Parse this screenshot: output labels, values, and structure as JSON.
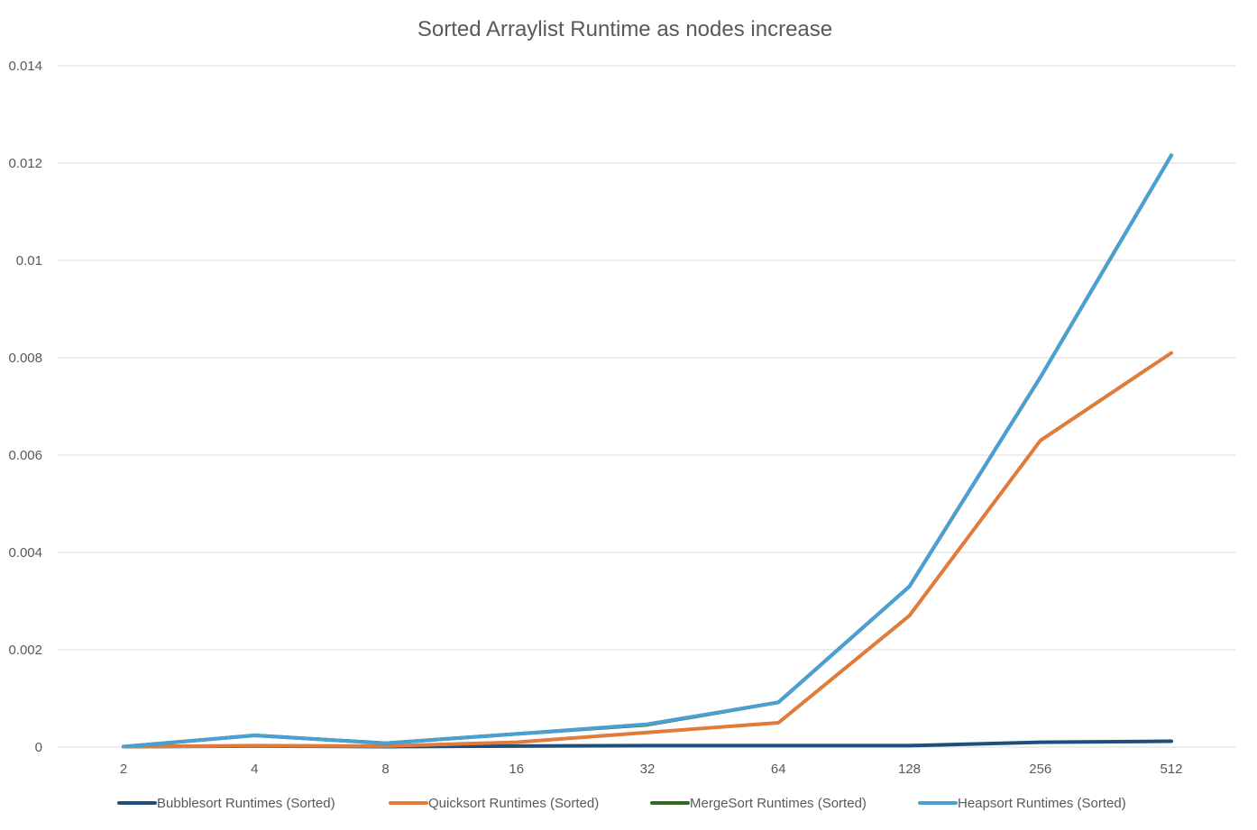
{
  "chart_data": {
    "type": "line",
    "title": "Sorted Arraylist Runtime as nodes increase",
    "xlabel": "",
    "ylabel": "",
    "categories": [
      "2",
      "4",
      "8",
      "16",
      "32",
      "64",
      "128",
      "256",
      "512"
    ],
    "ylim": [
      0,
      0.014
    ],
    "yticks": [
      "0",
      "0.002",
      "0.004",
      "0.006",
      "0.008",
      "0.01",
      "0.012",
      "0.014"
    ],
    "grid": true,
    "legend_position": "bottom",
    "series": [
      {
        "name": "Bubblesort Runtimes (Sorted)",
        "color": "#1f4e79",
        "values": [
          1e-05,
          2e-05,
          1e-05,
          2e-05,
          3e-05,
          3e-05,
          3e-05,
          0.0001,
          0.00012
        ]
      },
      {
        "name": "Quicksort Runtimes (Sorted)",
        "color": "#e07b39",
        "values": [
          1e-05,
          3e-05,
          2e-05,
          0.0001,
          0.0003,
          0.0005,
          0.0027,
          0.0063,
          0.0081
        ]
      },
      {
        "name": "MergeSort Runtimes (Sorted)",
        "color": "#2e6b1f",
        "values": [
          1e-05,
          0.00024,
          8e-05,
          0.00027,
          0.00046,
          0.00092,
          0.0033,
          0.0076,
          0.01216
        ]
      },
      {
        "name": "Heapsort Runtimes (Sorted)",
        "color": "#4a9fd4",
        "values": [
          1e-05,
          0.00024,
          8e-05,
          0.00027,
          0.00047,
          0.00092,
          0.0033,
          0.0076,
          0.01216
        ]
      }
    ]
  }
}
